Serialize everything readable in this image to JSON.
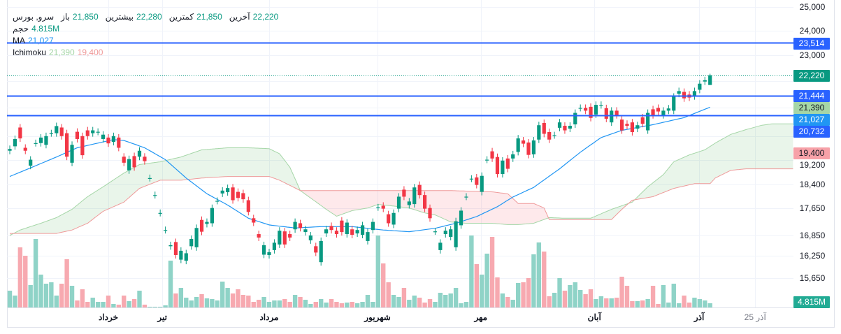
{
  "legend": {
    "symbol": "سرو, بورس",
    "open_label": "باز",
    "open": "21,850",
    "high_label": "بیشترین",
    "high": "22,280",
    "low_label": "کمترین",
    "low": "21,850",
    "close_label": "آخرین",
    "close": "22,220",
    "volume_label": "حجم",
    "volume": "4.815M",
    "ma_label": "MA",
    "ma": "21,027",
    "ichimoku_label": "Ichimoku",
    "ichimoku_a": "21,390",
    "ichimoku_b": "19,400"
  },
  "price_badges": {
    "last": "22,220",
    "line_top": "23,514",
    "line_mid": "21,444",
    "ichimoku_a": "21,390",
    "ma": "21,027",
    "line_low": "20,732",
    "ichimoku_b": "19,400",
    "volume": "4.815M"
  },
  "colors": {
    "up": "#089981",
    "down": "#f23645",
    "ma": "#2196f3",
    "hline": "#2962ff",
    "span_a": "#a5d6a7",
    "span_b": "#ef9a9a"
  },
  "chart_data": {
    "type": "candlestick",
    "title": "سرو, بورس",
    "y_scale": "log",
    "ylim": [
      15400,
      25000
    ],
    "y_ticks": [
      "25,000",
      "24,000",
      "23,000",
      "19,200",
      "18,400",
      "17,650",
      "16,850",
      "16,250",
      "15,650"
    ],
    "y_tick_values": [
      25000,
      24000,
      23000,
      19200,
      18400,
      17650,
      16850,
      16250,
      15650
    ],
    "x_ticks": [
      {
        "label": "خرداد",
        "bar": 19
      },
      {
        "label": "تیر",
        "bar": 29.4
      },
      {
        "label": "مرداد",
        "bar": 50
      },
      {
        "label": "شهریور",
        "bar": 70.9
      },
      {
        "label": "مهر",
        "bar": 90.8
      },
      {
        "label": "آبان",
        "bar": 112.7
      },
      {
        "label": "آذر",
        "bar": 132.9
      },
      {
        "label": "25 آذر",
        "bar": 143.7,
        "dim": true
      }
    ],
    "candles_oc": [
      [
        19500,
        19560
      ],
      [
        19650,
        19900
      ],
      [
        20300,
        19920
      ],
      [
        19600,
        19500
      ],
      [
        19000,
        19200
      ],
      [
        19760,
        19760
      ],
      [
        19760,
        19950
      ],
      [
        19700,
        20000
      ],
      [
        20100,
        20100
      ],
      [
        20100,
        20350
      ],
      [
        20300,
        20000
      ],
      [
        20100,
        19300
      ],
      [
        19100,
        19700
      ],
      [
        20150,
        19900
      ],
      [
        20000,
        19350
      ],
      [
        20200,
        20000
      ],
      [
        20100,
        20200
      ],
      [
        20150,
        20150
      ],
      [
        19900,
        20050
      ],
      [
        19950,
        19750
      ],
      [
        19800,
        20000
      ],
      [
        19950,
        19600
      ],
      [
        19300,
        19100
      ],
      [
        18850,
        19220
      ],
      [
        19320,
        18950
      ],
      [
        19300,
        19500
      ],
      [
        19300,
        19150
      ],
      [
        18600,
        18600
      ],
      [
        18060,
        18060
      ],
      [
        17510,
        17510
      ],
      [
        17000,
        17000
      ],
      [
        16530,
        16560
      ],
      [
        16650,
        16280
      ],
      [
        16150,
        16400
      ],
      [
        16120,
        16330
      ],
      [
        16530,
        16740
      ],
      [
        16500,
        17060
      ],
      [
        17300,
        16950
      ],
      [
        17180,
        17240
      ],
      [
        17200,
        17660
      ],
      [
        17880,
        17880
      ],
      [
        18110,
        18200
      ],
      [
        18150,
        18280
      ],
      [
        18300,
        17900
      ],
      [
        18160,
        17970
      ],
      [
        18120,
        17930
      ],
      [
        17900,
        17540
      ],
      [
        17350,
        17220
      ],
      [
        16880,
        16780
      ],
      [
        16290,
        16560
      ],
      [
        16280,
        16360
      ],
      [
        16420,
        16630
      ],
      [
        16580,
        16980
      ],
      [
        16960,
        16580
      ],
      [
        16880,
        16780
      ],
      [
        17020,
        17240
      ],
      [
        17200,
        17060
      ],
      [
        16940,
        17020
      ],
      [
        16700,
        16840
      ],
      [
        16530,
        16350
      ],
      [
        16080,
        16680
      ],
      [
        16900,
        17020
      ],
      [
        17120,
        17000
      ],
      [
        16980,
        16880
      ],
      [
        17280,
        16940
      ],
      [
        16880,
        17220
      ],
      [
        17020,
        16860
      ],
      [
        16900,
        17000
      ],
      [
        16860,
        17140
      ],
      [
        16680,
        16940
      ],
      [
        17000,
        17240
      ],
      [
        17680,
        17680
      ],
      [
        17730,
        17640
      ],
      [
        17470,
        17200
      ],
      [
        17160,
        17510
      ],
      [
        17640,
        18010
      ],
      [
        18230,
        18010
      ],
      [
        17750,
        17860
      ],
      [
        17780,
        18300
      ],
      [
        18380,
        18060
      ],
      [
        18060,
        17640
      ],
      [
        17660,
        17350
      ],
      [
        16960,
        16960
      ],
      [
        16420,
        16630
      ],
      [
        16880,
        16980
      ],
      [
        16800,
        17020
      ],
      [
        16500,
        17260
      ],
      [
        17140,
        17580
      ],
      [
        18010,
        18010
      ],
      [
        18580,
        18580
      ],
      [
        18620,
        18380
      ],
      [
        18160,
        18670
      ],
      [
        19200,
        19200
      ],
      [
        19480,
        19240
      ],
      [
        19290,
        18730
      ],
      [
        18730,
        19170
      ],
      [
        19240,
        18900
      ],
      [
        19240,
        19380
      ],
      [
        19460,
        19920
      ],
      [
        19850,
        19740
      ],
      [
        19780,
        19360
      ],
      [
        19380,
        19850
      ],
      [
        19880,
        20380
      ],
      [
        20460,
        20080
      ],
      [
        20140,
        19880
      ],
      [
        20030,
        20030
      ],
      [
        20290,
        20480
      ],
      [
        20360,
        20200
      ],
      [
        20260,
        20360
      ],
      [
        20410,
        20820
      ],
      [
        21000,
        21000
      ],
      [
        21000,
        20900
      ],
      [
        21040,
        20640
      ],
      [
        20760,
        21110
      ],
      [
        21100,
        21110
      ],
      [
        20990,
        20610
      ],
      [
        20480,
        20900
      ],
      [
        20900,
        20740
      ],
      [
        20580,
        20200
      ],
      [
        20430,
        20360
      ],
      [
        20480,
        20140
      ],
      [
        20260,
        20380
      ],
      [
        20660,
        20430
      ],
      [
        20200,
        20820
      ],
      [
        20950,
        20740
      ],
      [
        21000,
        20870
      ],
      [
        20740,
        20900
      ],
      [
        20900,
        20980
      ],
      [
        20900,
        21410
      ],
      [
        21520,
        21620
      ],
      [
        21590,
        21350
      ],
      [
        21490,
        21380
      ],
      [
        21430,
        21620
      ],
      [
        21670,
        21900
      ],
      [
        21980,
        22030
      ],
      [
        21850,
        22220
      ]
    ],
    "last_candle": {
      "open": 21850,
      "high": 22280,
      "low": 21850,
      "close": 22220
    },
    "volume_m": [
      19.2,
      13.6,
      68.8,
      59.2,
      25.6,
      78.4,
      37.6,
      27.2,
      28.8,
      13.6,
      27.2,
      55.2,
      24.8,
      8,
      20.8,
      6.4,
      11.2,
      6.4,
      6.4,
      13.6,
      4,
      3.2,
      13.6,
      7.2,
      9.6,
      19.2,
      3.2,
      0.8,
      0.8,
      0.8,
      2.4,
      53.6,
      16,
      22.4,
      11.2,
      8,
      12,
      15.2,
      10.4,
      9.6,
      8,
      29.6,
      22.4,
      16,
      20.8,
      14.4,
      13.6,
      6.4,
      8.8,
      12,
      6.4,
      8,
      8,
      9.6,
      6.4,
      14.4,
      12,
      8.8,
      4,
      6.4,
      9.6,
      5.6,
      9.6,
      6.4,
      4.8,
      5.6,
      6.4,
      4.8,
      6.4,
      14.4,
      6.4,
      82.4,
      50.4,
      28.8,
      14.4,
      12,
      22.4,
      8.8,
      13.6,
      11.2,
      5.6,
      9.6,
      6.4,
      16.8,
      14.4,
      16,
      22.4,
      4.8,
      6.4,
      82.4,
      49.6,
      37.6,
      61.6,
      80.8,
      34.4,
      16,
      12,
      8.8,
      28,
      28.8,
      33.6,
      60.8,
      74.4,
      64,
      12.8,
      16.8,
      33.6,
      19.2,
      25.6,
      28.8,
      20,
      15.2,
      20.8,
      9.6,
      12.8,
      10.4,
      10.4,
      11.2,
      35.2,
      24.8,
      7.2,
      7.2,
      8,
      9.6,
      24.8,
      4,
      25.6,
      5.6,
      27.2,
      4.8,
      13.6,
      5.6,
      11.2,
      9.6,
      8,
      4.815
    ],
    "ma": [
      [
        0,
        18650
      ],
      [
        5,
        19000
      ],
      [
        9,
        19290
      ],
      [
        13,
        19600
      ],
      [
        18,
        19800
      ],
      [
        20,
        19880
      ],
      [
        22,
        19850
      ],
      [
        26,
        19600
      ],
      [
        30,
        19200
      ],
      [
        34,
        18600
      ],
      [
        38,
        18100
      ],
      [
        42,
        17750
      ],
      [
        46,
        17350
      ],
      [
        50,
        17150
      ],
      [
        55,
        17060
      ],
      [
        60,
        17100
      ],
      [
        66,
        17100
      ],
      [
        72,
        17000
      ],
      [
        77,
        16950
      ],
      [
        82,
        17050
      ],
      [
        86,
        17200
      ],
      [
        90,
        17400
      ],
      [
        94,
        17700
      ],
      [
        97,
        18000
      ],
      [
        101,
        18300
      ],
      [
        106,
        18900
      ],
      [
        110,
        19450
      ],
      [
        114,
        19950
      ],
      [
        118,
        20200
      ],
      [
        124,
        20400
      ],
      [
        130,
        20650
      ],
      [
        135,
        21027
      ]
    ],
    "ichimoku_span_a": [
      [
        0,
        16840
      ],
      [
        2,
        17000
      ],
      [
        6,
        17200
      ],
      [
        9,
        17370
      ],
      [
        12,
        17620
      ],
      [
        15,
        18010
      ],
      [
        18,
        18320
      ],
      [
        22,
        18760
      ],
      [
        25,
        19040
      ],
      [
        29,
        19130
      ],
      [
        33,
        19290
      ],
      [
        37,
        19530
      ],
      [
        42,
        19600
      ],
      [
        46,
        19600
      ],
      [
        50,
        19570
      ],
      [
        52,
        19400
      ],
      [
        54,
        18950
      ],
      [
        56,
        18200
      ],
      [
        61,
        17620
      ],
      [
        63,
        17410
      ],
      [
        66,
        17580
      ],
      [
        69,
        17660
      ],
      [
        71,
        17770
      ],
      [
        74,
        17720
      ],
      [
        77,
        17660
      ],
      [
        80,
        17510
      ],
      [
        82,
        17450
      ],
      [
        85,
        17240
      ],
      [
        88,
        17200
      ],
      [
        93,
        17200
      ],
      [
        96,
        17160
      ],
      [
        98,
        17160
      ],
      [
        101,
        17200
      ],
      [
        104,
        17370
      ],
      [
        107,
        17350
      ],
      [
        112,
        17350
      ],
      [
        116,
        17620
      ],
      [
        120,
        17840
      ],
      [
        123,
        18320
      ],
      [
        126,
        18710
      ],
      [
        128,
        19130
      ],
      [
        131,
        19360
      ],
      [
        134,
        19530
      ],
      [
        136,
        19760
      ],
      [
        139,
        20060
      ],
      [
        142,
        20230
      ],
      [
        145,
        20380
      ],
      [
        147,
        20430
      ],
      [
        151,
        20430
      ]
    ],
    "ichimoku_span_b": [
      [
        0,
        16900
      ],
      [
        6,
        16900
      ],
      [
        9,
        16900
      ],
      [
        12,
        17000
      ],
      [
        15,
        17200
      ],
      [
        18,
        17560
      ],
      [
        22,
        17840
      ],
      [
        25,
        18270
      ],
      [
        29,
        18530
      ],
      [
        33,
        18530
      ],
      [
        37,
        18600
      ],
      [
        42,
        18650
      ],
      [
        50,
        18650
      ],
      [
        52,
        18530
      ],
      [
        56,
        18200
      ],
      [
        85,
        18200
      ],
      [
        93,
        18160
      ],
      [
        96,
        18100
      ],
      [
        98,
        17800
      ],
      [
        101,
        17800
      ],
      [
        103,
        17660
      ],
      [
        104,
        17310
      ],
      [
        116,
        17310
      ],
      [
        118,
        17620
      ],
      [
        120,
        17900
      ],
      [
        124,
        18010
      ],
      [
        128,
        18270
      ],
      [
        132,
        18420
      ],
      [
        135,
        18420
      ],
      [
        136,
        18600
      ],
      [
        139,
        18850
      ],
      [
        142,
        18900
      ],
      [
        151,
        18900
      ]
    ],
    "horizontal_lines": [
      23514,
      21444,
      20732
    ],
    "last_price_line": 22220
  }
}
